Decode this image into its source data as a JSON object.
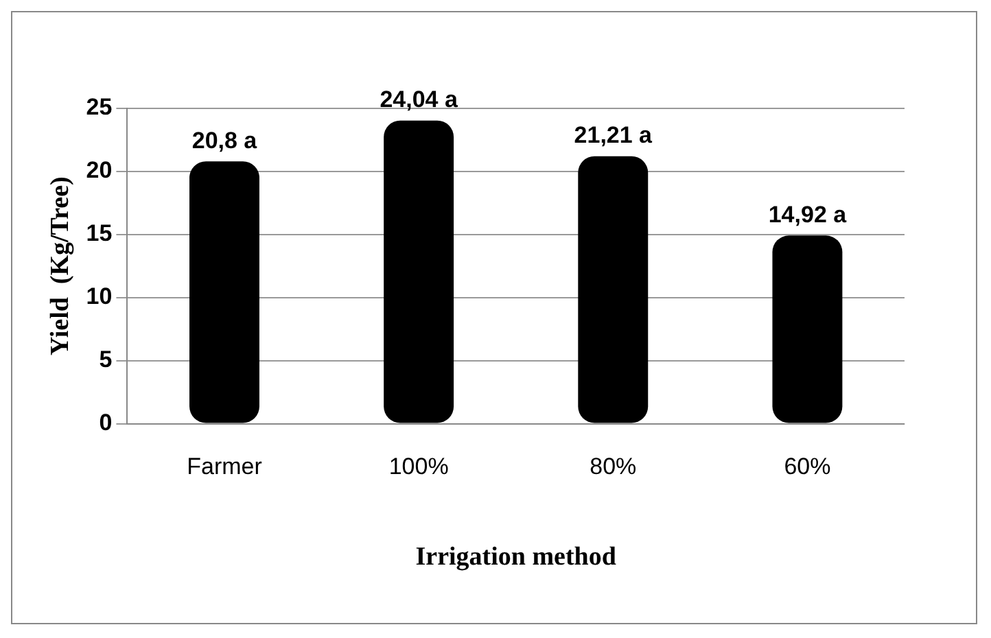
{
  "chart_data": {
    "type": "bar",
    "categories": [
      "Farmer",
      "100%",
      "80%",
      "60%"
    ],
    "series": [
      {
        "color": "#000000",
        "values": [
          20.8,
          24.04,
          21.21,
          14.92
        ]
      }
    ],
    "value_labels": [
      "20,8 a",
      "24,04 a",
      "21,21 a",
      "14,92 a"
    ],
    "ylim": [
      0,
      25
    ],
    "yticks": [
      0,
      5,
      10,
      15,
      20,
      25
    ],
    "grid": "y",
    "legend": false,
    "xlabel": "Irrigation method",
    "ylabel": "Yield  (Kg/Tree)"
  }
}
